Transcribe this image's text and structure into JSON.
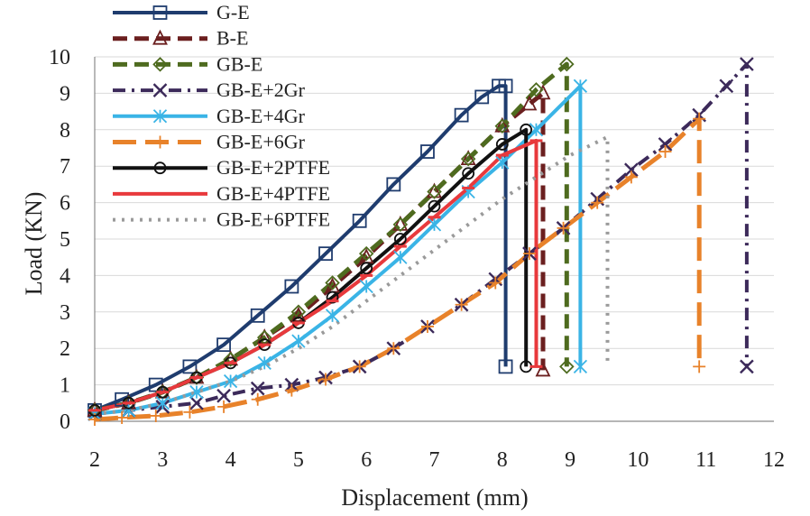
{
  "chart_data": {
    "type": "line",
    "title": "",
    "xlabel": "Displacement (mm)",
    "ylabel": "Load (KN)",
    "xlim": [
      2,
      12
    ],
    "ylim": [
      0,
      10
    ],
    "xticks": [
      "2",
      "3",
      "4",
      "5",
      "6",
      "7",
      "8",
      "9",
      "10",
      "11",
      "12"
    ],
    "yticks": [
      "0",
      "1",
      "2",
      "3",
      "4",
      "5",
      "6",
      "7",
      "8",
      "9",
      "10"
    ],
    "grid": "horizontal",
    "legend_position": "top-left",
    "series": [
      {
        "name": "G-E",
        "color": "#1f3c6e",
        "dash": "solid",
        "marker": "square",
        "x": [
          2.0,
          2.4,
          2.9,
          3.4,
          3.9,
          4.4,
          4.9,
          5.4,
          5.9,
          6.4,
          6.9,
          7.4,
          7.7,
          7.95,
          8.05,
          8.05
        ],
        "y": [
          0.3,
          0.6,
          1.0,
          1.5,
          2.1,
          2.9,
          3.7,
          4.6,
          5.5,
          6.5,
          7.4,
          8.4,
          8.9,
          9.2,
          9.2,
          1.5
        ]
      },
      {
        "name": "B-E",
        "color": "#6b1f1f",
        "dash": "dash",
        "marker": "triangle",
        "x": [
          2.0,
          2.5,
          3.0,
          3.5,
          4.0,
          4.5,
          5.0,
          5.5,
          6.0,
          6.5,
          7.0,
          7.5,
          8.0,
          8.4,
          8.6,
          8.6
        ],
        "y": [
          0.3,
          0.5,
          0.8,
          1.2,
          1.7,
          2.3,
          2.9,
          3.7,
          4.5,
          5.4,
          6.3,
          7.2,
          8.1,
          8.7,
          9.0,
          1.4
        ]
      },
      {
        "name": "GB-E",
        "color": "#4e6b1f",
        "dash": "dash",
        "marker": "diamond",
        "x": [
          2.0,
          2.5,
          3.0,
          3.5,
          4.0,
          4.5,
          5.0,
          5.5,
          6.0,
          6.5,
          7.0,
          7.5,
          8.0,
          8.5,
          8.95,
          8.95
        ],
        "y": [
          0.3,
          0.5,
          0.8,
          1.2,
          1.7,
          2.3,
          3.0,
          3.8,
          4.6,
          5.4,
          6.3,
          7.2,
          8.1,
          9.1,
          9.8,
          1.5
        ]
      },
      {
        "name": "GB-E+2Gr",
        "color": "#3c2a5a",
        "dash": "dashdot",
        "marker": "x",
        "x": [
          2.0,
          2.5,
          3.0,
          3.5,
          3.9,
          4.4,
          4.9,
          5.4,
          5.9,
          6.4,
          6.9,
          7.4,
          7.9,
          8.4,
          8.9,
          9.4,
          9.9,
          10.4,
          10.9,
          11.3,
          11.6,
          11.6
        ],
        "y": [
          0.2,
          0.3,
          0.4,
          0.5,
          0.7,
          0.9,
          1.0,
          1.2,
          1.5,
          2.0,
          2.6,
          3.2,
          3.9,
          4.6,
          5.3,
          6.1,
          6.9,
          7.6,
          8.4,
          9.2,
          9.8,
          1.5
        ]
      },
      {
        "name": "GB-E+4Gr",
        "color": "#3ab4e6",
        "dash": "solid",
        "marker": "asterisk",
        "x": [
          2.0,
          2.5,
          3.0,
          3.5,
          4.0,
          4.5,
          5.0,
          5.5,
          6.0,
          6.5,
          7.0,
          7.5,
          8.0,
          8.5,
          9.15,
          9.15
        ],
        "y": [
          0.2,
          0.3,
          0.5,
          0.8,
          1.1,
          1.6,
          2.2,
          2.9,
          3.7,
          4.5,
          5.4,
          6.3,
          7.1,
          8.0,
          9.2,
          1.5
        ]
      },
      {
        "name": "GB-E+6Gr",
        "color": "#e8822a",
        "dash": "longdash",
        "marker": "plus",
        "x": [
          2.0,
          2.4,
          2.9,
          3.4,
          3.9,
          4.4,
          4.9,
          5.4,
          5.9,
          6.4,
          6.9,
          7.4,
          7.9,
          8.4,
          8.9,
          9.4,
          9.9,
          10.4,
          10.9,
          10.9
        ],
        "y": [
          0.05,
          0.1,
          0.15,
          0.25,
          0.4,
          0.6,
          0.85,
          1.15,
          1.5,
          2.0,
          2.6,
          3.2,
          3.8,
          4.6,
          5.3,
          6.0,
          6.7,
          7.4,
          8.3,
          1.5
        ]
      },
      {
        "name": "GB-E+2PTFE",
        "color": "#111111",
        "dash": "solid",
        "marker": "circle",
        "x": [
          2.0,
          2.5,
          3.0,
          3.5,
          4.0,
          4.5,
          5.0,
          5.5,
          6.0,
          6.5,
          7.0,
          7.5,
          8.0,
          8.35,
          8.35
        ],
        "y": [
          0.3,
          0.5,
          0.8,
          1.2,
          1.6,
          2.1,
          2.7,
          3.4,
          4.2,
          5.0,
          5.9,
          6.8,
          7.6,
          8.0,
          1.5
        ]
      },
      {
        "name": "GB-E+4PTFE",
        "color": "#e8393c",
        "dash": "solid",
        "marker": "dash",
        "x": [
          2.0,
          2.5,
          3.0,
          3.5,
          4.0,
          4.5,
          5.0,
          5.5,
          6.0,
          6.5,
          7.0,
          7.5,
          8.0,
          8.5,
          8.5
        ],
        "y": [
          0.3,
          0.5,
          0.8,
          1.2,
          1.6,
          2.1,
          2.7,
          3.3,
          4.0,
          4.8,
          5.6,
          6.4,
          7.3,
          7.7,
          1.5
        ]
      },
      {
        "name": "GB-E+6PTFE",
        "color": "#9a9a9a",
        "dash": "dot",
        "marker": "none",
        "x": [
          2.0,
          2.5,
          3.0,
          3.5,
          4.0,
          4.5,
          5.0,
          5.5,
          6.0,
          6.5,
          7.0,
          7.5,
          8.0,
          8.5,
          9.0,
          9.55,
          9.55
        ],
        "y": [
          0.2,
          0.3,
          0.5,
          0.8,
          1.1,
          1.5,
          2.0,
          2.6,
          3.3,
          4.0,
          4.7,
          5.4,
          6.1,
          6.7,
          7.3,
          7.8,
          1.5
        ]
      }
    ]
  }
}
